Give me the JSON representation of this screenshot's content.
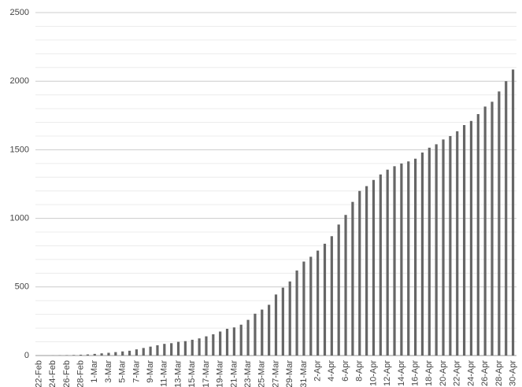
{
  "chart_data": {
    "type": "bar",
    "categories": [
      "22-Feb",
      null,
      "24-Feb",
      null,
      "26-Feb",
      null,
      "28-Feb",
      null,
      "1-Mar",
      null,
      "3-Mar",
      null,
      "5-Mar",
      null,
      "7-Mar",
      null,
      "9-Mar",
      null,
      "11-Mar",
      null,
      "13-Mar",
      null,
      "15-Mar",
      null,
      "17-Mar",
      null,
      "19-Mar",
      null,
      "21-Mar",
      null,
      "23-Mar",
      null,
      "25-Mar",
      null,
      "27-Mar",
      null,
      "29-Mar",
      null,
      "31-Mar",
      null,
      "2-Apr",
      null,
      "4-Apr",
      null,
      "6-Apr",
      null,
      "8-Apr",
      null,
      "10-Apr",
      null,
      "12-Apr",
      null,
      "14-Apr",
      null,
      "16-Apr",
      null,
      "18-Apr",
      null,
      "20-Apr",
      null,
      "22-Apr",
      null,
      "24-Apr",
      null,
      "26-Apr",
      null,
      "28-Apr",
      null,
      "30-Apr"
    ],
    "values": [
      0,
      0,
      1,
      2,
      3,
      4,
      6,
      8,
      12,
      16,
      20,
      25,
      30,
      35,
      45,
      55,
      65,
      75,
      85,
      90,
      100,
      105,
      115,
      125,
      140,
      155,
      175,
      195,
      205,
      225,
      260,
      305,
      335,
      370,
      445,
      495,
      540,
      620,
      685,
      720,
      765,
      815,
      870,
      955,
      1025,
      1120,
      1200,
      1235,
      1280,
      1320,
      1355,
      1380,
      1400,
      1415,
      1435,
      1480,
      1515,
      1540,
      1575,
      1600,
      1635,
      1680,
      1710,
      1760,
      1815,
      1850,
      1925,
      2000,
      2085
    ],
    "color": "#666666",
    "ylim": [
      0,
      2500
    ],
    "yticks": [
      0,
      500,
      1000,
      1500,
      2000,
      2500
    ],
    "minor_yticks": [
      100,
      200,
      300,
      400,
      600,
      700,
      800,
      900,
      1100,
      1200,
      1300,
      1400,
      1600,
      1700,
      1800,
      1900,
      2100,
      2200,
      2300,
      2400
    ],
    "grid": true
  }
}
